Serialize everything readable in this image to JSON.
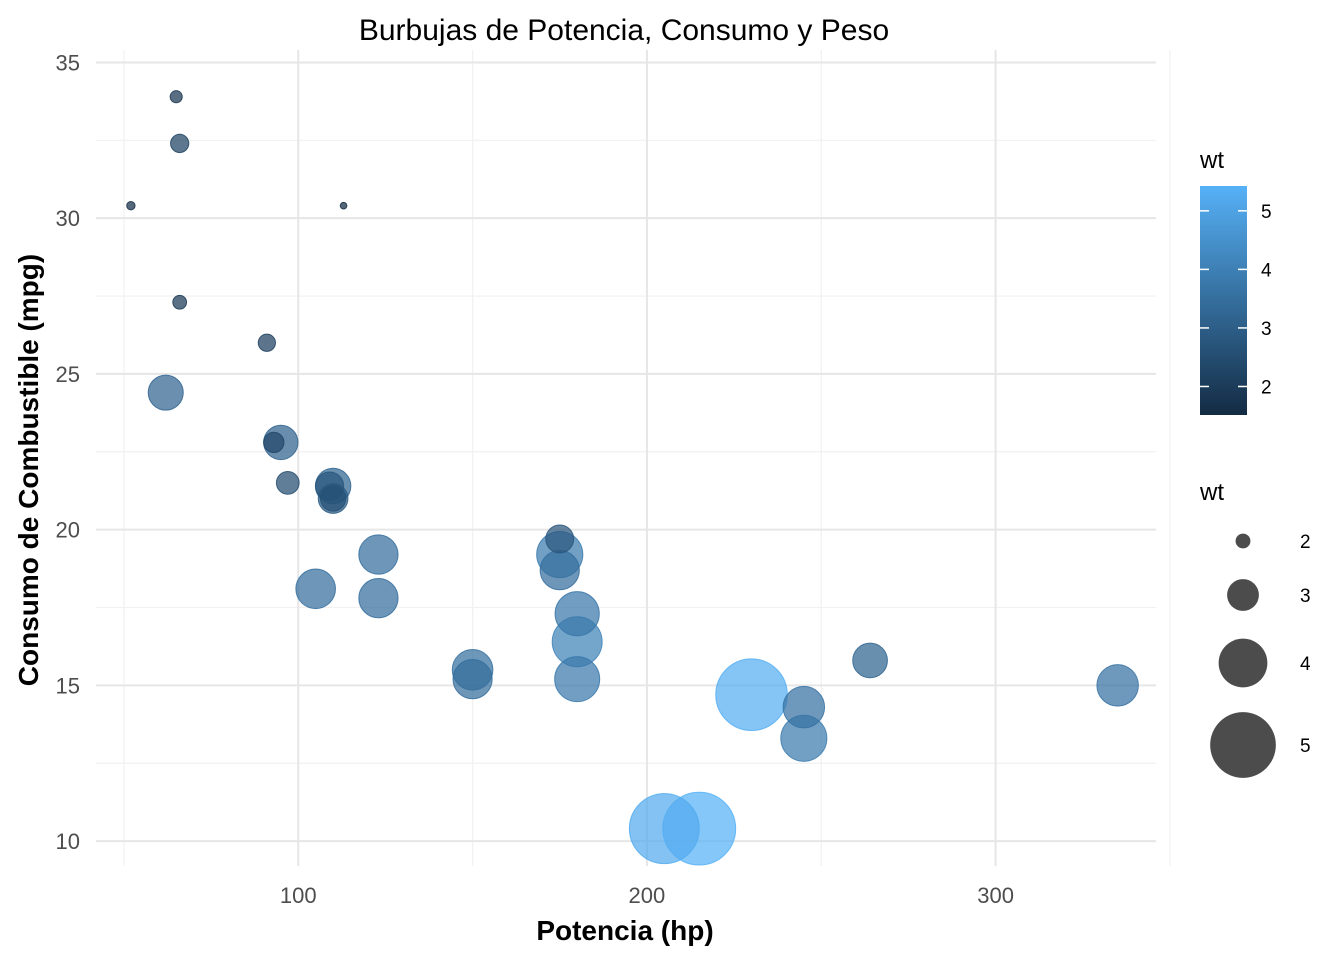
{
  "chart_data": {
    "type": "scatter",
    "title": "Burbujas de Potencia, Consumo y Peso",
    "xlabel": "Potencia (hp)",
    "ylabel": "Consumo de Combustible (mpg)",
    "xlim": [
      42,
      346
    ],
    "ylim": [
      9.2,
      35.4
    ],
    "x_ticks": [
      100,
      200,
      300
    ],
    "y_ticks": [
      10,
      15,
      20,
      25,
      30,
      35
    ],
    "grid": true,
    "size_variable": "wt",
    "color_variable": "wt",
    "color_legend": {
      "title": "wt",
      "ticks": [
        2,
        3,
        4,
        5
      ],
      "range": [
        1.513,
        5.424
      ],
      "low_color": "#132b43",
      "high_color": "#56b1f7"
    },
    "size_legend": {
      "title": "wt",
      "ticks": [
        2,
        3,
        4,
        5
      ]
    },
    "points": [
      {
        "hp": 110,
        "mpg": 21.0,
        "wt": 2.62
      },
      {
        "hp": 110,
        "mpg": 21.0,
        "wt": 2.875
      },
      {
        "hp": 93,
        "mpg": 22.8,
        "wt": 2.32
      },
      {
        "hp": 110,
        "mpg": 21.4,
        "wt": 3.215
      },
      {
        "hp": 175,
        "mpg": 18.7,
        "wt": 3.44
      },
      {
        "hp": 105,
        "mpg": 18.1,
        "wt": 3.46
      },
      {
        "hp": 245,
        "mpg": 14.3,
        "wt": 3.57
      },
      {
        "hp": 62,
        "mpg": 24.4,
        "wt": 3.19
      },
      {
        "hp": 95,
        "mpg": 22.8,
        "wt": 3.15
      },
      {
        "hp": 123,
        "mpg": 19.2,
        "wt": 3.44
      },
      {
        "hp": 123,
        "mpg": 17.8,
        "wt": 3.44
      },
      {
        "hp": 180,
        "mpg": 16.4,
        "wt": 4.07
      },
      {
        "hp": 180,
        "mpg": 17.3,
        "wt": 3.73
      },
      {
        "hp": 180,
        "mpg": 15.2,
        "wt": 3.78
      },
      {
        "hp": 205,
        "mpg": 10.4,
        "wt": 5.25
      },
      {
        "hp": 215,
        "mpg": 10.4,
        "wt": 5.424
      },
      {
        "hp": 230,
        "mpg": 14.7,
        "wt": 5.345
      },
      {
        "hp": 66,
        "mpg": 32.4,
        "wt": 2.2
      },
      {
        "hp": 52,
        "mpg": 30.4,
        "wt": 1.615
      },
      {
        "hp": 65,
        "mpg": 33.9,
        "wt": 1.835
      },
      {
        "hp": 97,
        "mpg": 21.5,
        "wt": 2.465
      },
      {
        "hp": 150,
        "mpg": 15.5,
        "wt": 3.52
      },
      {
        "hp": 150,
        "mpg": 15.2,
        "wt": 3.435
      },
      {
        "hp": 245,
        "mpg": 13.3,
        "wt": 3.84
      },
      {
        "hp": 175,
        "mpg": 19.2,
        "wt": 3.845
      },
      {
        "hp": 66,
        "mpg": 27.3,
        "wt": 1.935
      },
      {
        "hp": 91,
        "mpg": 26.0,
        "wt": 2.14
      },
      {
        "hp": 113,
        "mpg": 30.4,
        "wt": 1.513
      },
      {
        "hp": 264,
        "mpg": 15.8,
        "wt": 3.17
      },
      {
        "hp": 175,
        "mpg": 19.7,
        "wt": 2.77
      },
      {
        "hp": 335,
        "mpg": 15.0,
        "wt": 3.57
      },
      {
        "hp": 109,
        "mpg": 21.4,
        "wt": 2.78
      }
    ]
  }
}
